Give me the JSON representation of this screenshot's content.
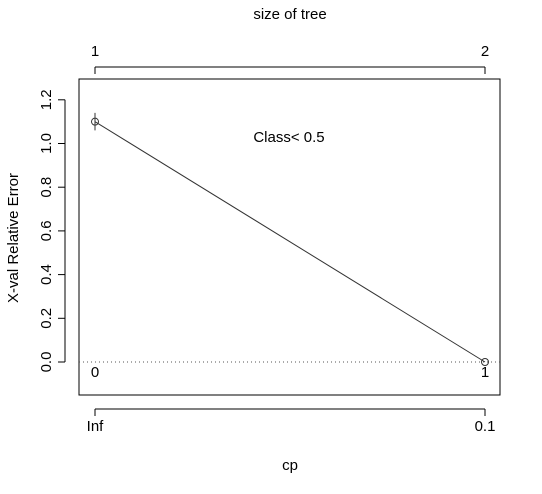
{
  "chart_data": {
    "type": "line",
    "title": "size of tree",
    "xlabel": "cp",
    "ylabel": "X-val Relative Error",
    "x_ticks": [
      "Inf",
      "0.1"
    ],
    "top_ticks": [
      "1",
      "2"
    ],
    "y_ticks": [
      "0.0",
      "0.2",
      "0.4",
      "0.6",
      "0.8",
      "1.0",
      "1.2"
    ],
    "ylim": [
      -0.15,
      1.28
    ],
    "series": [
      {
        "values": [
          1.1,
          0.0
        ],
        "errors": [
          0.04,
          0.0
        ],
        "point_labels": [
          "0",
          "1"
        ]
      }
    ],
    "reference_line": 0.0,
    "annotation": "Class< 0.5",
    "grid": false
  }
}
